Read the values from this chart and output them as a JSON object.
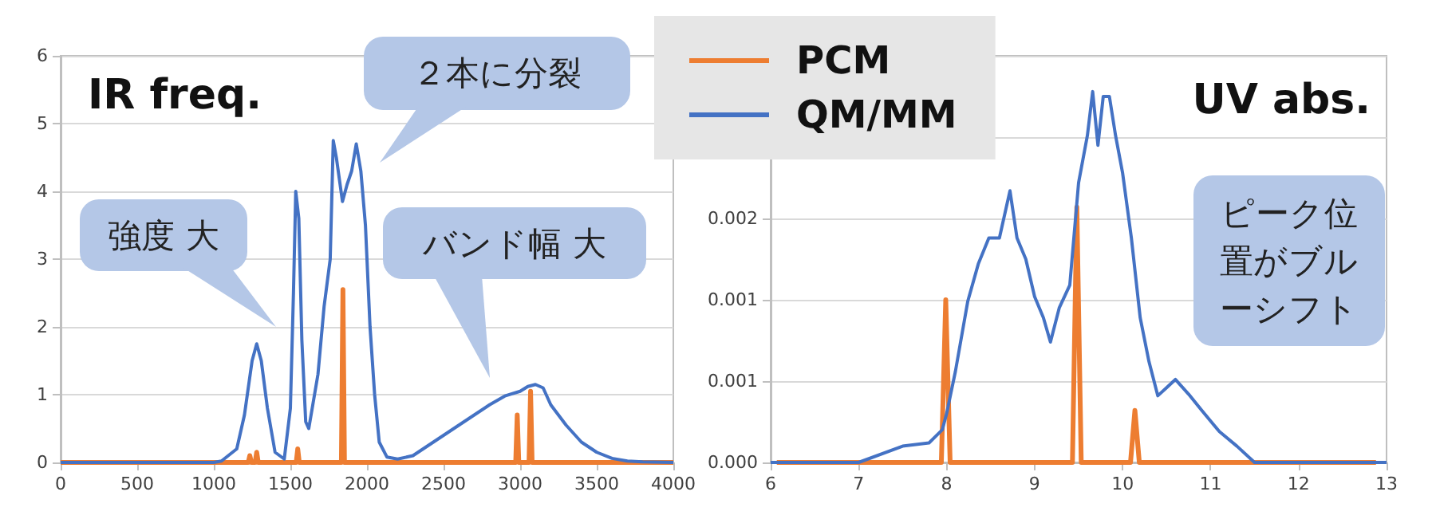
{
  "chart_data": [
    {
      "type": "line",
      "title": "IR freq.",
      "xlim": [
        0,
        4000
      ],
      "xticks": [
        0,
        500,
        1000,
        1500,
        2000,
        2500,
        3000,
        3500,
        4000
      ],
      "ylim": [
        0,
        6
      ],
      "yticks": [
        0,
        1,
        2,
        3,
        4,
        5,
        6
      ],
      "grid": "y",
      "marker": "none",
      "series": [
        {
          "color": "#ed7d31",
          "x": [
            0,
            1225,
            1235,
            1245,
            1270,
            1280,
            1290,
            1538,
            1548,
            1558,
            1833,
            1843,
            1853,
            2971,
            2981,
            2991,
            3058,
            3068,
            3078,
            4000
          ],
          "values": [
            0,
            0,
            0.1,
            0,
            0,
            0.15,
            0,
            0,
            0.2,
            0,
            0,
            2.55,
            0,
            0,
            0.7,
            0,
            0,
            1.05,
            0,
            0
          ]
        },
        {
          "color": "#4472c4",
          "x": [
            0,
            1000,
            1050,
            1150,
            1200,
            1250,
            1280,
            1310,
            1350,
            1400,
            1460,
            1500,
            1520,
            1535,
            1555,
            1575,
            1600,
            1620,
            1680,
            1720,
            1760,
            1780,
            1800,
            1840,
            1870,
            1900,
            1930,
            1960,
            1990,
            2020,
            2050,
            2080,
            2130,
            2200,
            2300,
            2400,
            2500,
            2600,
            2700,
            2800,
            2900,
            3000,
            3050,
            3100,
            3150,
            3200,
            3300,
            3400,
            3500,
            3600,
            3700,
            3800,
            4000
          ],
          "values": [
            0,
            0,
            0.02,
            0.2,
            0.7,
            1.5,
            1.75,
            1.5,
            0.8,
            0.15,
            0.05,
            0.8,
            2.5,
            4.0,
            3.6,
            1.8,
            0.6,
            0.5,
            1.3,
            2.3,
            3.0,
            4.75,
            4.5,
            3.85,
            4.1,
            4.3,
            4.7,
            4.3,
            3.5,
            2.0,
            1.0,
            0.3,
            0.08,
            0.05,
            0.1,
            0.25,
            0.4,
            0.55,
            0.7,
            0.85,
            0.98,
            1.05,
            1.12,
            1.15,
            1.1,
            0.85,
            0.55,
            0.3,
            0.15,
            0.06,
            0.02,
            0.01,
            0
          ]
        }
      ],
      "annotations": [
        "強度 大",
        "２本に分裂",
        "バンド幅 大"
      ]
    },
    {
      "type": "line",
      "title": "UV abs.",
      "xlim": [
        6,
        13
      ],
      "xticks": [
        6,
        7,
        8,
        9,
        10,
        11,
        12,
        13
      ],
      "ylim": [
        0,
        0.0025
      ],
      "yticks": [
        {
          "value": 0,
          "label": "0.000"
        },
        {
          "value": 0.0005,
          "label": "0.001"
        },
        {
          "value": 0.001,
          "label": "0.001"
        },
        {
          "value": 0.0015,
          "label": "0.002"
        },
        {
          "value": 0.002,
          "label": null
        },
        {
          "value": 0.0025,
          "label": null
        }
      ],
      "grid": "y",
      "marker": "none",
      "legend": "top left",
      "series": [
        {
          "name": "PCM",
          "color": "#ed7d31",
          "x": [
            6.07,
            7.94,
            7.99,
            8.04,
            9.43,
            9.48,
            9.53,
            10.09,
            10.14,
            10.19,
            12.88
          ],
          "values": [
            0,
            0,
            0.001,
            0,
            0,
            0.00157,
            0,
            0,
            0.00032,
            0,
            0
          ]
        },
        {
          "name": "QM/MM",
          "color": "#4472c4",
          "x": [
            6,
            6.8,
            7.0,
            7.5,
            7.8,
            7.95,
            8.0,
            8.1,
            8.24,
            8.36,
            8.48,
            8.6,
            8.72,
            8.8,
            8.9,
            9.0,
            9.1,
            9.18,
            9.28,
            9.4,
            9.5,
            9.6,
            9.66,
            9.72,
            9.78,
            9.85,
            9.92,
            10.0,
            10.1,
            10.2,
            10.3,
            10.4,
            10.5,
            10.6,
            10.75,
            10.9,
            11.1,
            11.3,
            11.5,
            11.7,
            13
          ],
          "values": [
            0,
            0,
            0,
            0.0001,
            0.00012,
            0.0002,
            0.0003,
            0.00056,
            0.00099,
            0.00122,
            0.00138,
            0.00138,
            0.00167,
            0.00138,
            0.00125,
            0.00102,
            0.00089,
            0.00074,
            0.00095,
            0.00109,
            0.00172,
            0.00201,
            0.00228,
            0.00195,
            0.00225,
            0.00225,
            0.00201,
            0.00178,
            0.00138,
            0.00089,
            0.00062,
            0.00041,
            0.00046,
            0.00051,
            0.00042,
            0.00032,
            0.00019,
            0.0001,
            0,
            0,
            0
          ]
        }
      ],
      "annotations": [
        "ピーク位置がブルーシフト"
      ]
    }
  ]
}
